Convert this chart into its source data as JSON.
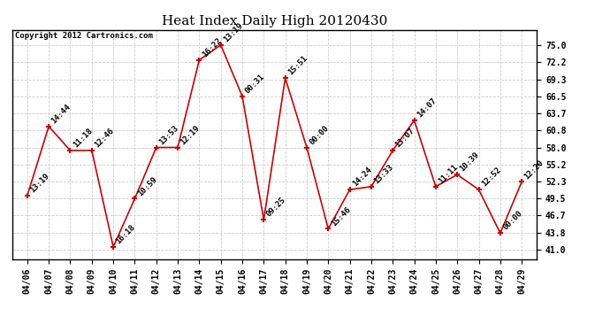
{
  "title": "Heat Index Daily High 20120430",
  "copyright_text": "Copyright 2012 Cartronics.com",
  "background_color": "#ffffff",
  "plot_bg_color": "#ffffff",
  "grid_color": "#cccccc",
  "line_color": "#cc0000",
  "marker_color": "#cc0000",
  "dates": [
    "04/06",
    "04/07",
    "04/08",
    "04/09",
    "04/10",
    "04/11",
    "04/12",
    "04/13",
    "04/14",
    "04/15",
    "04/16",
    "04/17",
    "04/18",
    "04/19",
    "04/20",
    "04/21",
    "04/22",
    "04/23",
    "04/24",
    "04/25",
    "04/26",
    "04/27",
    "04/28",
    "04/29"
  ],
  "values": [
    50.0,
    61.5,
    57.5,
    57.5,
    41.5,
    49.5,
    58.0,
    58.0,
    72.5,
    75.0,
    66.5,
    46.0,
    69.5,
    58.0,
    44.5,
    51.0,
    51.5,
    57.5,
    62.5,
    51.5,
    53.5,
    51.0,
    43.8,
    52.3
  ],
  "labels": [
    "13:19",
    "14:44",
    "11:18",
    "12:46",
    "16:18",
    "10:59",
    "13:53",
    "12:19",
    "16:22",
    "13:19",
    "00:31",
    "09:25",
    "15:51",
    "00:00",
    "15:46",
    "14:24",
    "13:33",
    "13:07",
    "14:07",
    "11:11",
    "10:39",
    "12:52",
    "00:00",
    "12:20"
  ],
  "yticks": [
    41.0,
    43.8,
    46.7,
    49.5,
    52.3,
    55.2,
    58.0,
    60.8,
    63.7,
    66.5,
    69.3,
    72.2,
    75.0
  ],
  "ylim": [
    39.5,
    77.5
  ],
  "title_fontsize": 11,
  "label_fontsize": 6.5,
  "tick_fontsize": 7,
  "copyright_fontsize": 6.5
}
